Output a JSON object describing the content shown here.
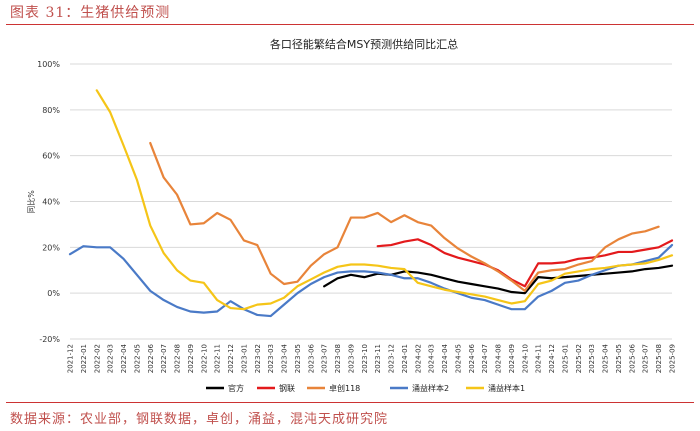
{
  "figure": {
    "label": "图表 31：生猪供给预测",
    "source": "数据来源：农业部，钢联数据，卓创，涌益，混沌天成研究院"
  },
  "chart_data": {
    "type": "line",
    "title": "各口径能繁结合MSY预测供给同比汇总",
    "xlabel": "",
    "ylabel": "同比%",
    "ylim": [
      -20,
      100
    ],
    "yticks": [
      -20,
      0,
      20,
      40,
      60,
      80,
      100
    ],
    "ytick_labels": [
      "-20%",
      "0%",
      "20%",
      "40%",
      "60%",
      "80%",
      "100%"
    ],
    "grid": true,
    "legend": "bottom",
    "categories": [
      "2021-12",
      "2022-01",
      "2022-02",
      "2022-03",
      "2022-04",
      "2022-05",
      "2022-06",
      "2022-07",
      "2022-08",
      "2022-09",
      "2022-10",
      "2022-11",
      "2022-12",
      "2023-01",
      "2023-02",
      "2023-03",
      "2023-04",
      "2023-05",
      "2023-06",
      "2023-07",
      "2023-08",
      "2023-09",
      "2023-10",
      "2023-11",
      "2023-12",
      "2024-01",
      "2024-02",
      "2024-03",
      "2024-04",
      "2024-05",
      "2024-06",
      "2024-07",
      "2024-08",
      "2024-09",
      "2024-10",
      "2024-11",
      "2024-12",
      "2025-01",
      "2025-02",
      "2025-03",
      "2025-04",
      "2025-05",
      "2025-06",
      "2025-07",
      "2025-08",
      "2025-09"
    ],
    "series": [
      {
        "name": "官方",
        "color": "#000000",
        "values": [
          null,
          null,
          null,
          null,
          null,
          null,
          null,
          null,
          null,
          null,
          null,
          null,
          null,
          null,
          null,
          null,
          null,
          null,
          null,
          3,
          6.5,
          8,
          7,
          8.5,
          8,
          9.5,
          9,
          8,
          6.5,
          5,
          4,
          3,
          2,
          0.5,
          0,
          7,
          6.5,
          7,
          7.5,
          8,
          8.5,
          9,
          9.5,
          10.5,
          11,
          12
        ]
      },
      {
        "name": "钢联",
        "color": "#e31a1c",
        "values": [
          null,
          null,
          null,
          null,
          null,
          null,
          null,
          null,
          null,
          null,
          null,
          null,
          null,
          null,
          null,
          null,
          null,
          null,
          null,
          null,
          null,
          null,
          null,
          20.5,
          21,
          22.5,
          23.5,
          21,
          17.5,
          15.5,
          14,
          12.5,
          10,
          6,
          3,
          13,
          13,
          13.5,
          15,
          15.5,
          16.5,
          18,
          18,
          19,
          20,
          23
        ]
      },
      {
        "name": "卓创118",
        "color": "#e8843a",
        "values": [
          null,
          null,
          null,
          null,
          null,
          null,
          65.5,
          50.5,
          43,
          30,
          30.5,
          35,
          32,
          23,
          21,
          8.5,
          4,
          5,
          12,
          17,
          20,
          33,
          33,
          35,
          31,
          34,
          31,
          29.5,
          24,
          19.5,
          16,
          13,
          9.5,
          5.5,
          1,
          9,
          10,
          10.5,
          12.5,
          14,
          20,
          23.5,
          26,
          27,
          29,
          null
        ]
      },
      {
        "name": "涌益样本2",
        "color": "#4a7ac7",
        "values": [
          17,
          20.5,
          20,
          20,
          15,
          8,
          1,
          -3,
          -6,
          -8,
          -8.5,
          -8,
          -3.5,
          -7,
          -9.5,
          -10,
          -5,
          0,
          4,
          7,
          9,
          9.5,
          9.5,
          9,
          8,
          6.5,
          6.5,
          4.5,
          2,
          0,
          -2,
          -3,
          -5,
          -7,
          -7,
          -1.5,
          1,
          4.5,
          5.5,
          8,
          10,
          12,
          12.5,
          14,
          15.5,
          21
        ]
      },
      {
        "name": "涌益样本1",
        "color": "#f5c518",
        "values": [
          null,
          null,
          88.5,
          79,
          64.5,
          49.5,
          29.5,
          17.5,
          10,
          5.5,
          4.5,
          -3,
          -6.5,
          -7,
          -5,
          -4.5,
          -2,
          3,
          6,
          9,
          11.5,
          12.5,
          12.5,
          12,
          11,
          10.5,
          4.5,
          3,
          1.5,
          0.5,
          -0.5,
          -1.5,
          -3,
          -4.5,
          -3.5,
          4,
          5.5,
          8.5,
          9.5,
          10.5,
          11,
          12,
          12.5,
          13,
          14.5,
          16.5
        ]
      }
    ]
  }
}
